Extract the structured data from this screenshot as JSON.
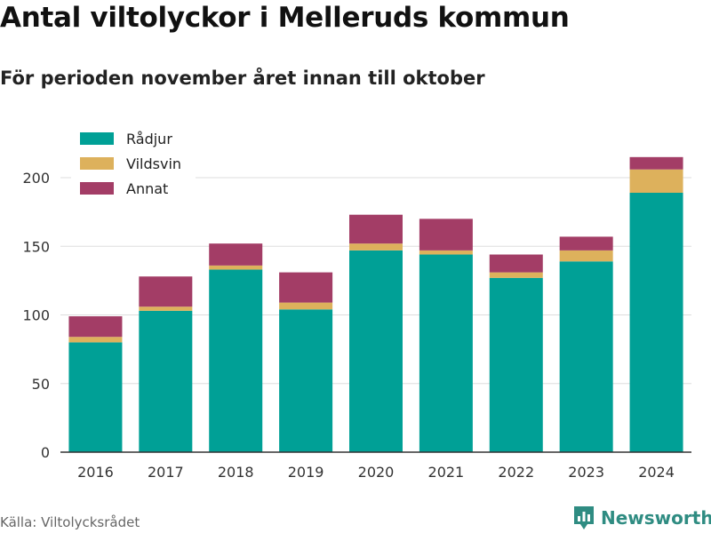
{
  "title": "Antal viltolyckor i Melleruds kommun",
  "subtitle": "För perioden november året innan till oktober",
  "source": "Källa: Viltolycksrådet",
  "brand": {
    "name": "Newsworthy",
    "icon": "bar-chart-icon",
    "color": "#2f8c82"
  },
  "chart_data": {
    "type": "bar",
    "stacked": true,
    "categories": [
      "2016",
      "2017",
      "2018",
      "2019",
      "2020",
      "2021",
      "2022",
      "2023",
      "2024"
    ],
    "series": [
      {
        "name": "Rådjur",
        "color": "#00a096",
        "values": [
          80,
          103,
          133,
          104,
          147,
          144,
          127,
          139,
          189
        ]
      },
      {
        "name": "Vildsvin",
        "color": "#ddb15c",
        "values": [
          4,
          3,
          3,
          5,
          5,
          3,
          4,
          8,
          17
        ]
      },
      {
        "name": "Annat",
        "color": "#a33d66",
        "values": [
          15,
          22,
          16,
          22,
          21,
          23,
          13,
          10,
          9
        ]
      }
    ],
    "ylim": [
      0,
      220
    ],
    "yticks": [
      0,
      50,
      100,
      150,
      200
    ],
    "grid": true,
    "legend_position": "top-left"
  }
}
